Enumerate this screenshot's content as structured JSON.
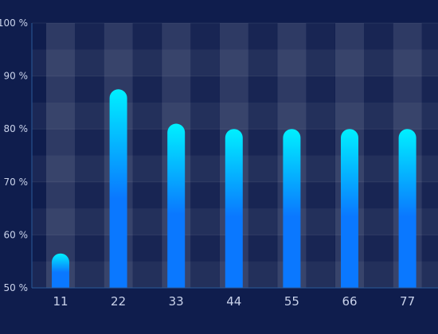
{
  "chart_data": {
    "type": "bar",
    "categories": [
      "11",
      "22",
      "33",
      "44",
      "55",
      "66",
      "77"
    ],
    "values": [
      56.5,
      87.5,
      81,
      80,
      80,
      80,
      80
    ],
    "ylim": [
      50,
      100
    ],
    "yticks": [
      50,
      60,
      70,
      80,
      90,
      100
    ],
    "ytick_labels": [
      "50 %",
      "60 %",
      "70 %",
      "80 %",
      "90 %",
      "100 %"
    ],
    "title": "",
    "xlabel": "",
    "ylabel": "",
    "grid": true,
    "colors": {
      "background": "#0f1d4d",
      "bar_top": "#00f0ff",
      "bar_bottom": "#0a78ff",
      "axis": "#2a5a9a",
      "tick_text": "#c9d2ea"
    }
  }
}
